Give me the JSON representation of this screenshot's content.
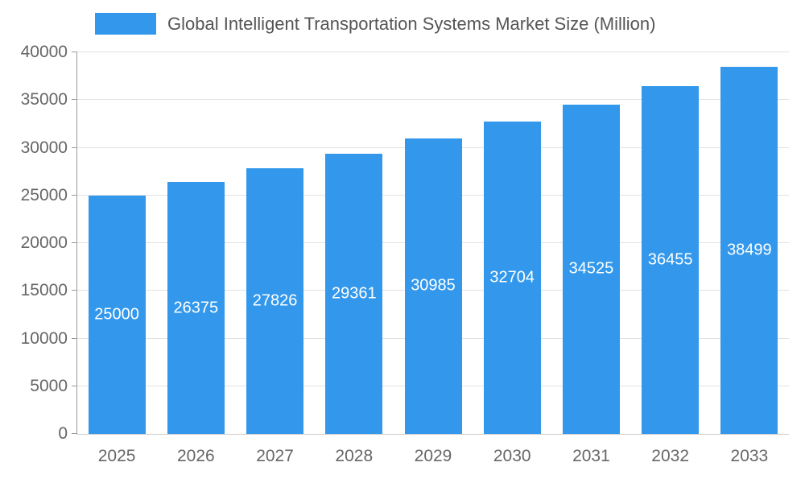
{
  "chart_data": {
    "type": "bar",
    "title": "Global Intelligent Transportation Systems Market Size (Million)",
    "categories": [
      "2025",
      "2026",
      "2027",
      "2028",
      "2029",
      "2030",
      "2031",
      "2032",
      "2033"
    ],
    "values": [
      25000,
      26375,
      27826,
      29361,
      30985,
      32704,
      34525,
      36455,
      38499
    ],
    "xlabel": "",
    "ylabel": "",
    "ylim": [
      0,
      40000
    ],
    "ytick_step": 5000,
    "yticks": [
      0,
      5000,
      10000,
      15000,
      20000,
      25000,
      30000,
      35000,
      40000
    ],
    "grid": true,
    "legend_position": "top-left",
    "bar_color": "#3398EC",
    "value_label_color": "#FFFFFF"
  }
}
